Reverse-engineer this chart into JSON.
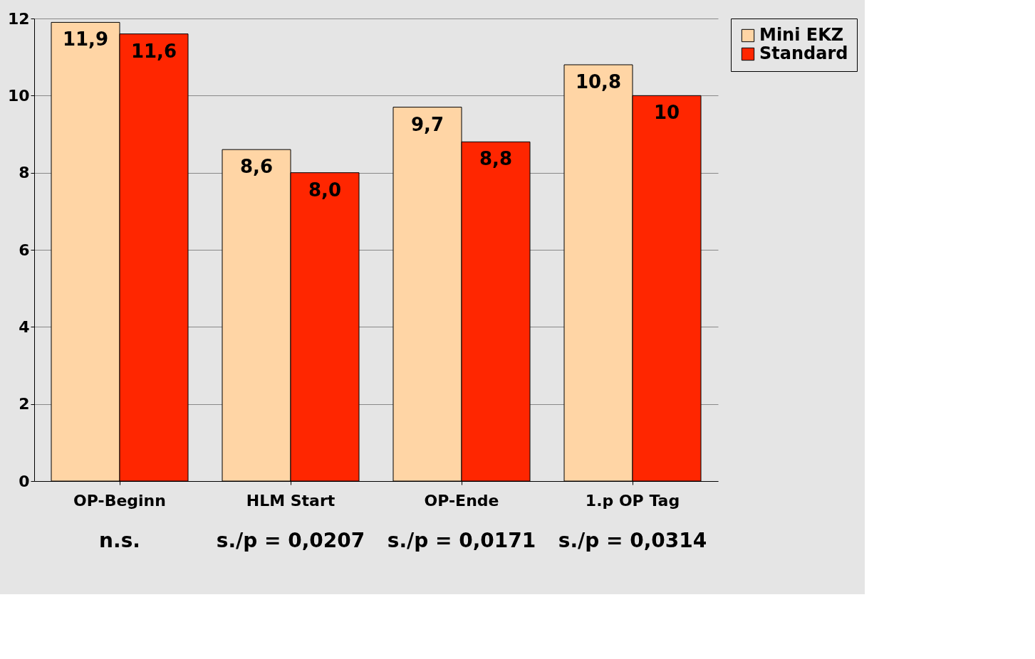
{
  "chart_data": {
    "type": "bar",
    "categories": [
      "OP-Beginn",
      "HLM Start",
      "OP-Ende",
      "1.p OP Tag"
    ],
    "series": [
      {
        "name": "Mini EKZ",
        "color": "#ffd5a5",
        "values": [
          11.9,
          8.6,
          9.7,
          10.8
        ],
        "value_labels": [
          "11,9",
          "8,6",
          "9,7",
          "10,8"
        ]
      },
      {
        "name": "Standard",
        "color": "#ff2600",
        "values": [
          11.6,
          8.0,
          8.8,
          10
        ],
        "value_labels": [
          "11,6",
          "8,0",
          "8,8",
          "10"
        ]
      }
    ],
    "ylim": [
      0,
      12
    ],
    "yticks": [
      0,
      2,
      4,
      6,
      8,
      10,
      12
    ],
    "grid": "y",
    "legend": "right",
    "annotations": [
      "n.s.",
      "s./p = 0,0207",
      "s./p = 0,0171",
      "s./p = 0,0314"
    ]
  }
}
